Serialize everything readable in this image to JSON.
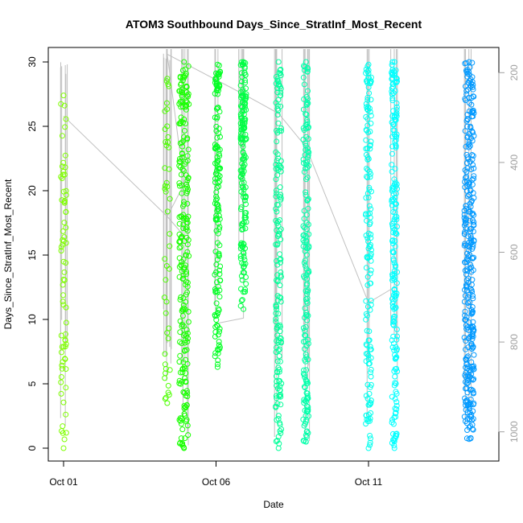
{
  "chart_data": {
    "type": "scatter",
    "title": "ATOM3 Southbound Days_Since_StratInf_Most_Recent",
    "xlabel": "Date",
    "ylabel": "Days_Since_StratInf_Most_Recent",
    "x_ticks": [
      {
        "label": "Oct 01",
        "day": 1
      },
      {
        "label": "Oct 06",
        "day": 6
      },
      {
        "label": "Oct 11",
        "day": 11
      }
    ],
    "xlim_days": [
      1,
      15
    ],
    "y_ticks": [
      0,
      5,
      10,
      15,
      20,
      25,
      30
    ],
    "ylim": [
      0,
      30
    ],
    "secondary_axis": {
      "ticks": [
        200,
        400,
        600,
        800,
        1000
      ],
      "lim": [
        1040,
        160
      ],
      "color": "#a0a0a0",
      "series_name": "pressure profile (gray lines)"
    },
    "grid": false,
    "legend": "none",
    "marker": "open-circle",
    "groups": [
      {
        "day": 1.0,
        "y_min": 0.0,
        "y_max": 27.4,
        "color": "#7fff00",
        "n": 70
      },
      {
        "day": 4.4,
        "y_min": 3.5,
        "y_max": 28.7,
        "color": "#4dff00",
        "n": 45
      },
      {
        "day": 4.95,
        "y_min": 0.0,
        "y_max": 30.0,
        "color": "#19ff00",
        "n": 230
      },
      {
        "day": 6.05,
        "y_min": 6.3,
        "y_max": 29.8,
        "color": "#00ff22",
        "n": 150
      },
      {
        "day": 6.9,
        "y_min": 10.8,
        "y_max": 30.0,
        "color": "#00ff44",
        "n": 170
      },
      {
        "day": 8.05,
        "y_min": 0.0,
        "y_max": 30.0,
        "color": "#00ff99",
        "n": 160
      },
      {
        "day": 8.95,
        "y_min": 0.5,
        "y_max": 30.0,
        "color": "#00ffaa",
        "n": 170
      },
      {
        "day": 11.0,
        "y_min": 0.0,
        "y_max": 29.8,
        "color": "#00ffee",
        "n": 150
      },
      {
        "day": 11.85,
        "y_min": 0.0,
        "y_max": 30.0,
        "color": "#00ffff",
        "n": 200
      },
      {
        "day": 14.3,
        "y_min": 0.7,
        "y_max": 30.0,
        "color": "#0099ff",
        "n": 320
      }
    ]
  }
}
